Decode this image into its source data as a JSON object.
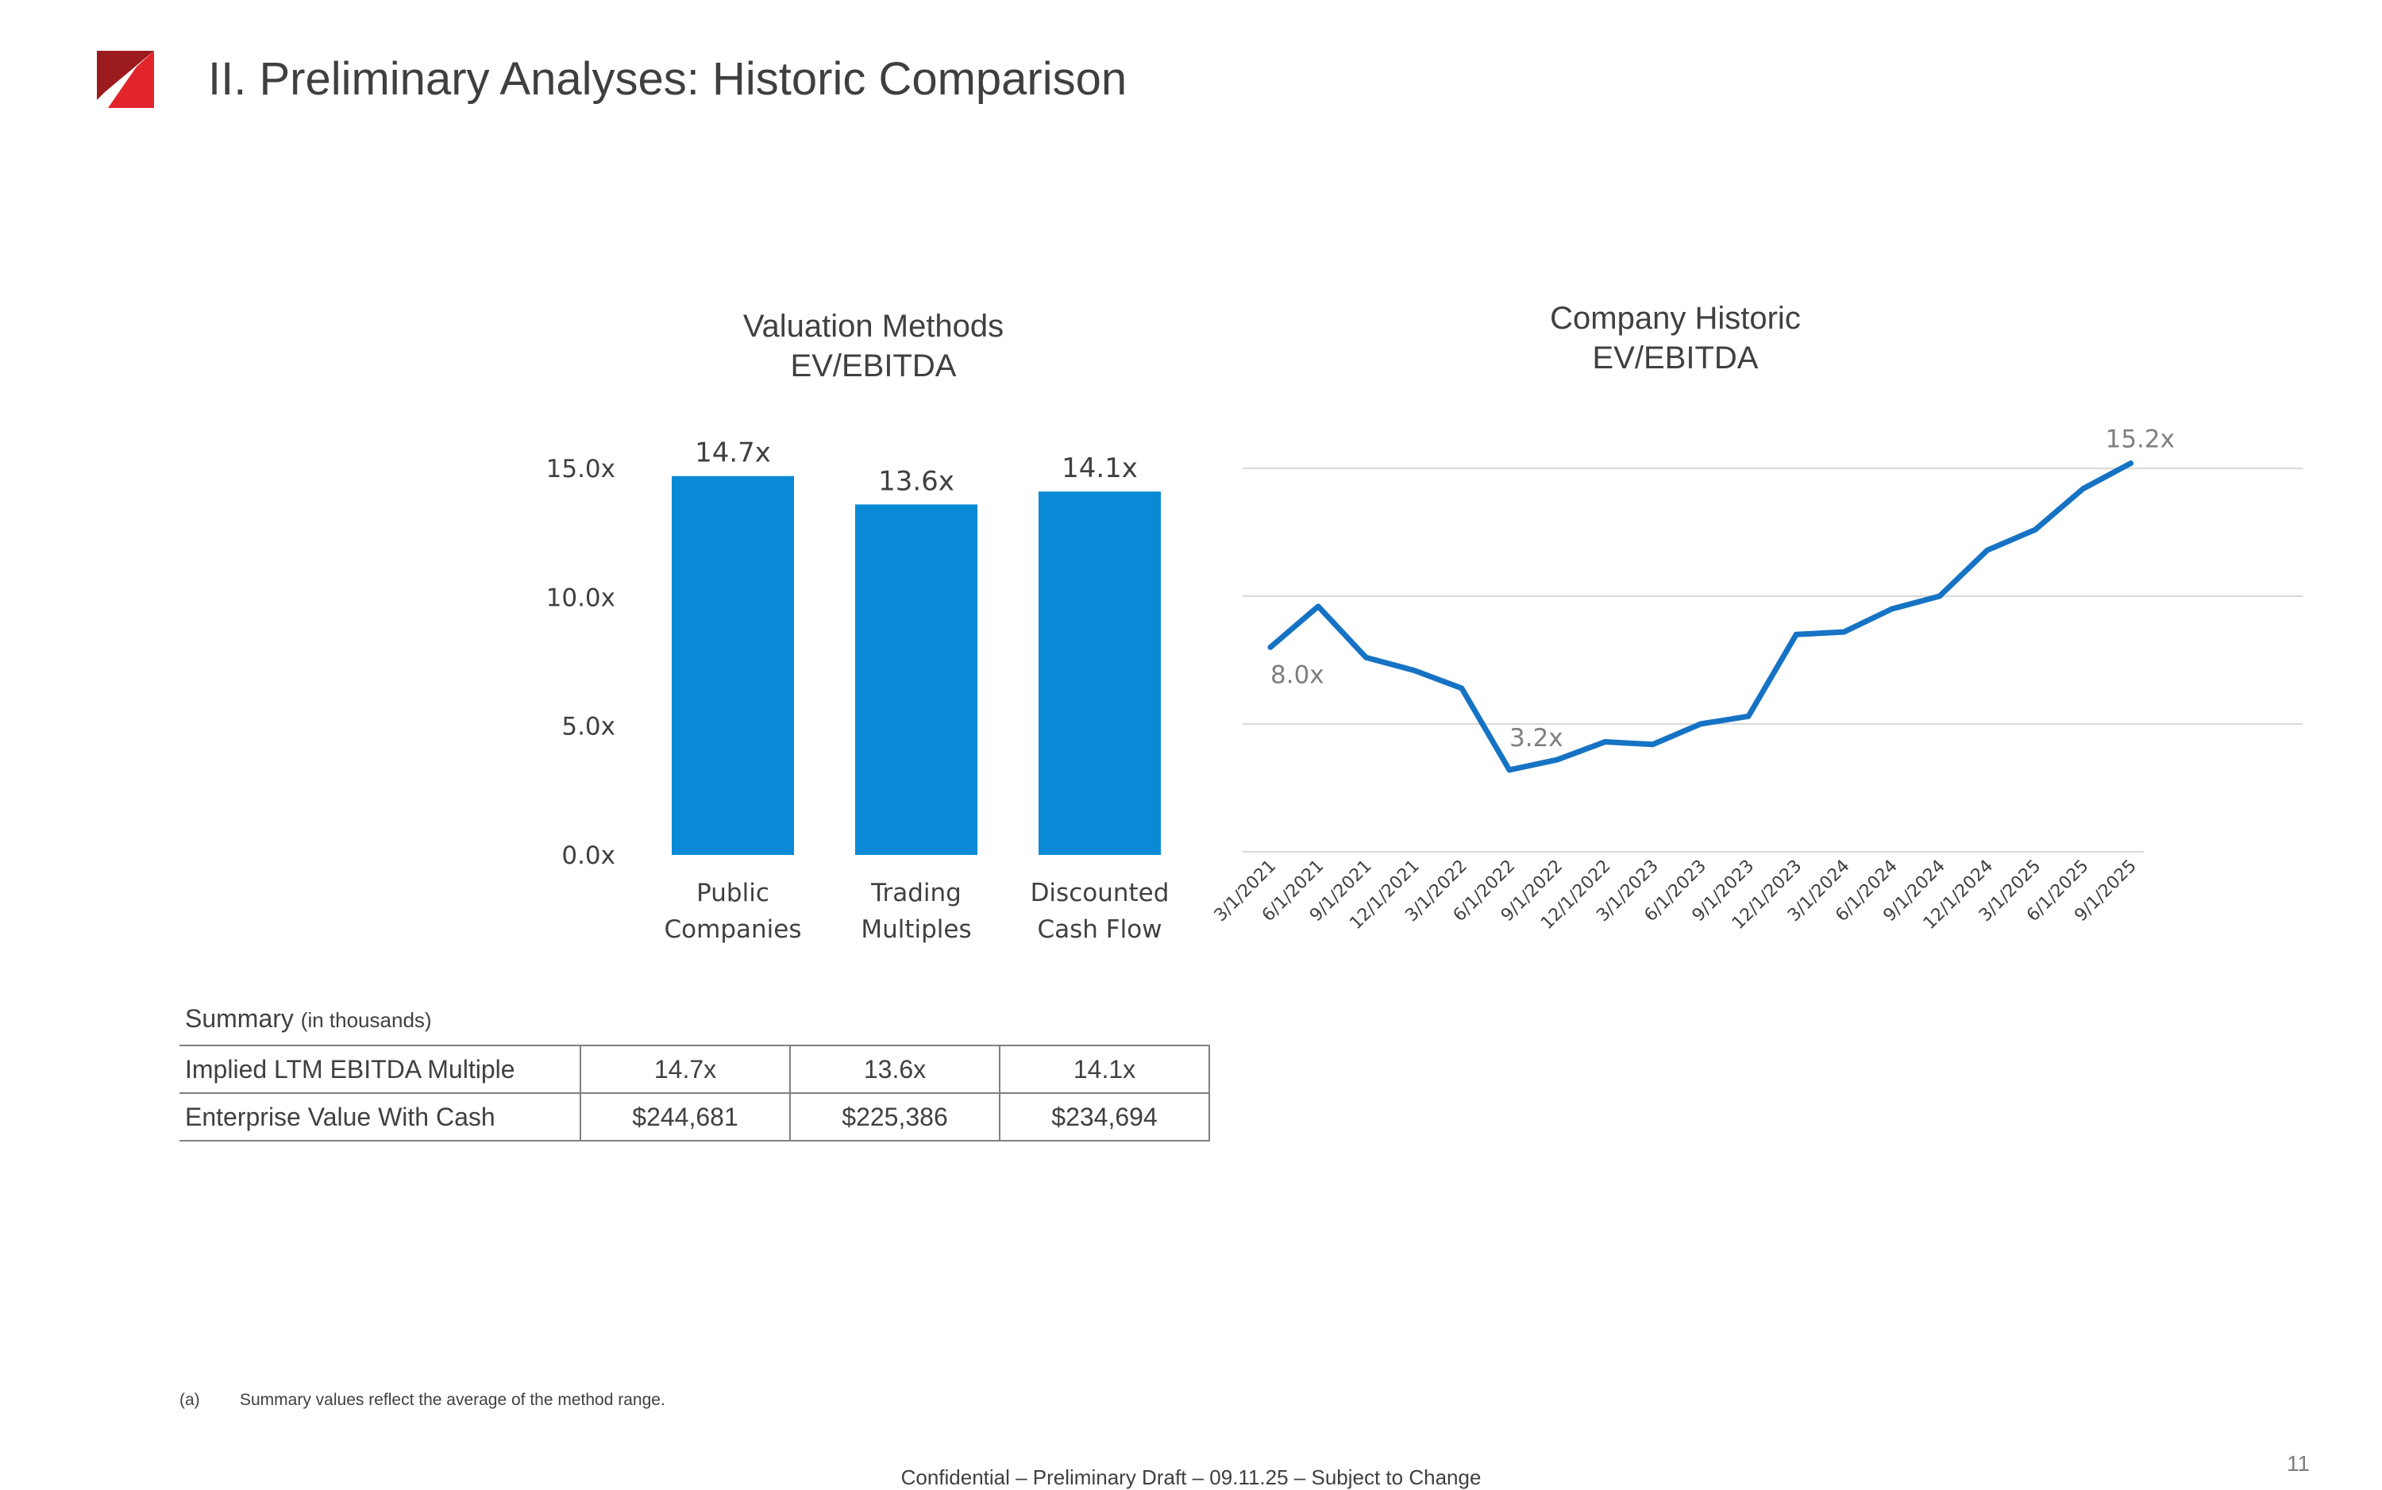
{
  "page": {
    "title": "II. Preliminary Analyses: Historic Comparison",
    "footer": "Confidential – Preliminary Draft – 09.11.25 –  Subject to Change",
    "page_number": "11",
    "footnote": {
      "marker": "(a)",
      "text": "Summary values reflect the average of the method range."
    },
    "brand_colors": {
      "logo_dark": "#9b1b1f",
      "logo_light": "#e2242b",
      "bar_color": "#0a8ad6",
      "line_color": "#1673c4"
    }
  },
  "chart_data": [
    {
      "type": "bar",
      "title": [
        "Valuation Methods",
        "EV/EBITDA"
      ],
      "categories": [
        [
          "Public",
          "Companies"
        ],
        [
          "Trading",
          "Multiples"
        ],
        [
          "Discounted",
          "Cash Flow"
        ]
      ],
      "values": [
        14.7,
        13.6,
        14.1
      ],
      "data_labels": [
        "14.7x",
        "13.6x",
        "14.1x"
      ],
      "y_ticks": [
        0,
        5,
        10,
        15
      ],
      "y_tick_labels": [
        "0.0x",
        "5.0x",
        "10.0x",
        "15.0x"
      ],
      "ylim": [
        0,
        15
      ],
      "xlabel": "",
      "ylabel": "",
      "grid": false
    },
    {
      "type": "line",
      "title": [
        "Company Historic",
        "EV/EBITDA"
      ],
      "x": [
        "3/1/2021",
        "6/1/2021",
        "9/1/2021",
        "12/1/2021",
        "3/1/2022",
        "6/1/2022",
        "9/1/2022",
        "12/1/2022",
        "3/1/2023",
        "6/1/2023",
        "9/1/2023",
        "12/1/2023",
        "3/1/2024",
        "6/1/2024",
        "9/1/2024",
        "12/1/2024",
        "3/1/2025",
        "6/1/2025",
        "9/1/2025"
      ],
      "values": [
        8.0,
        9.6,
        7.6,
        7.1,
        6.4,
        3.2,
        3.6,
        4.3,
        4.2,
        5.0,
        5.3,
        8.5,
        8.6,
        9.5,
        10.0,
        11.8,
        12.6,
        14.2,
        15.2
      ],
      "annotations": [
        {
          "index": 0,
          "label": "8.0x"
        },
        {
          "index": 5,
          "label": "3.2x"
        },
        {
          "index": 18,
          "label": "15.2x"
        }
      ],
      "y_ticks": [
        0,
        5,
        10,
        15
      ],
      "ylim": [
        0,
        15
      ],
      "xlabel": "",
      "ylabel": "",
      "grid": true
    }
  ],
  "summary": {
    "heading": "Summary",
    "heading_note": "(in thousands)",
    "rows": [
      {
        "label": "Implied LTM EBITDA Multiple",
        "values": [
          "14.7x",
          "13.6x",
          "14.1x"
        ]
      },
      {
        "label": "Enterprise Value With Cash",
        "values": [
          "$244,681",
          "$225,386",
          "$234,694"
        ]
      }
    ]
  }
}
